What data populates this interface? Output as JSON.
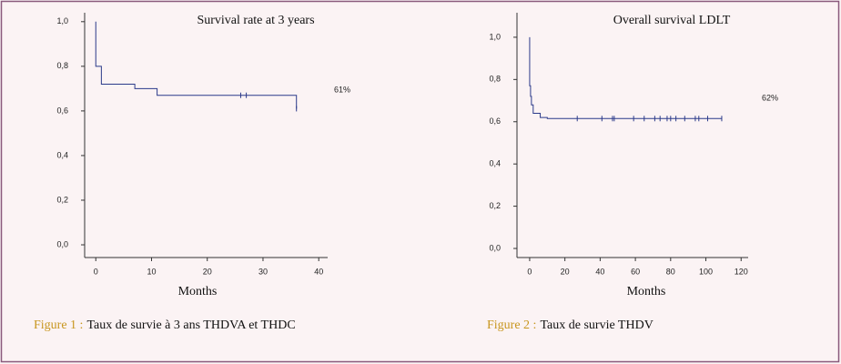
{
  "chart_data": [
    {
      "type": "line",
      "title": "Survival rate at 3 years",
      "xlabel": "Months",
      "annotations": [
        "61%"
      ],
      "caption_label": "Figure 1 :",
      "caption": "Taux de survie à 3 ans THDVA et THDC",
      "xlim": [
        -2,
        41.6
      ],
      "ylim": [
        -0.057,
        1.04
      ],
      "xticks": [
        0,
        10,
        20,
        30,
        40
      ],
      "yticks": [
        {
          "value": 0,
          "label": "0,0"
        },
        {
          "value": 0.2,
          "label": "0,2"
        },
        {
          "value": 0.4,
          "label": "0,4"
        },
        {
          "value": 0.6,
          "label": "0,6"
        },
        {
          "value": 0.8,
          "label": "0,8"
        },
        {
          "value": 1,
          "label": "1,0"
        }
      ],
      "series": [
        {
          "color": "#2b3a8a",
          "x": [
            0,
            0,
            1,
            1,
            7,
            7,
            11,
            11,
            36,
            36
          ],
          "values": [
            1,
            0.8,
            0.8,
            0.72,
            0.72,
            0.7,
            0.7,
            0.67,
            0.67,
            0.61
          ]
        }
      ],
      "censored": {
        "x": [
          26,
          27,
          36
        ],
        "values": [
          0.67,
          0.67,
          0.61
        ]
      }
    },
    {
      "type": "line",
      "title": "Overall survival LDLT",
      "xlabel": "Months",
      "annotations": [
        "62%"
      ],
      "caption_label": "Figure 2 :",
      "caption": "Taux de survie THDV",
      "xlim": [
        -7.2,
        124
      ],
      "ylim": [
        -0.043,
        1.116
      ],
      "xticks": [
        0,
        20,
        40,
        60,
        80,
        100,
        120
      ],
      "yticks": [
        {
          "value": 0,
          "label": "0,0"
        },
        {
          "value": 0.2,
          "label": "0,2"
        },
        {
          "value": 0.4,
          "label": "0,4"
        },
        {
          "value": 0.6,
          "label": "0,6"
        },
        {
          "value": 0.8,
          "label": "0,8"
        },
        {
          "value": 1,
          "label": "1,0"
        }
      ],
      "series": [
        {
          "color": "#2b3a8a",
          "x": [
            0,
            0,
            0.5,
            0.5,
            1,
            1,
            2,
            2,
            6,
            6,
            10,
            10,
            109
          ],
          "values": [
            1,
            0.77,
            0.77,
            0.72,
            0.72,
            0.68,
            0.68,
            0.64,
            0.64,
            0.62,
            0.62,
            0.615,
            0.615
          ]
        }
      ],
      "censored": {
        "x": [
          27,
          41,
          47,
          48,
          59,
          65,
          71,
          74,
          78,
          80,
          83,
          88,
          94,
          96,
          101,
          109
        ],
        "values": [
          0.615,
          0.615,
          0.615,
          0.615,
          0.615,
          0.615,
          0.615,
          0.615,
          0.615,
          0.615,
          0.615,
          0.615,
          0.615,
          0.615,
          0.615,
          0.615
        ]
      }
    }
  ]
}
